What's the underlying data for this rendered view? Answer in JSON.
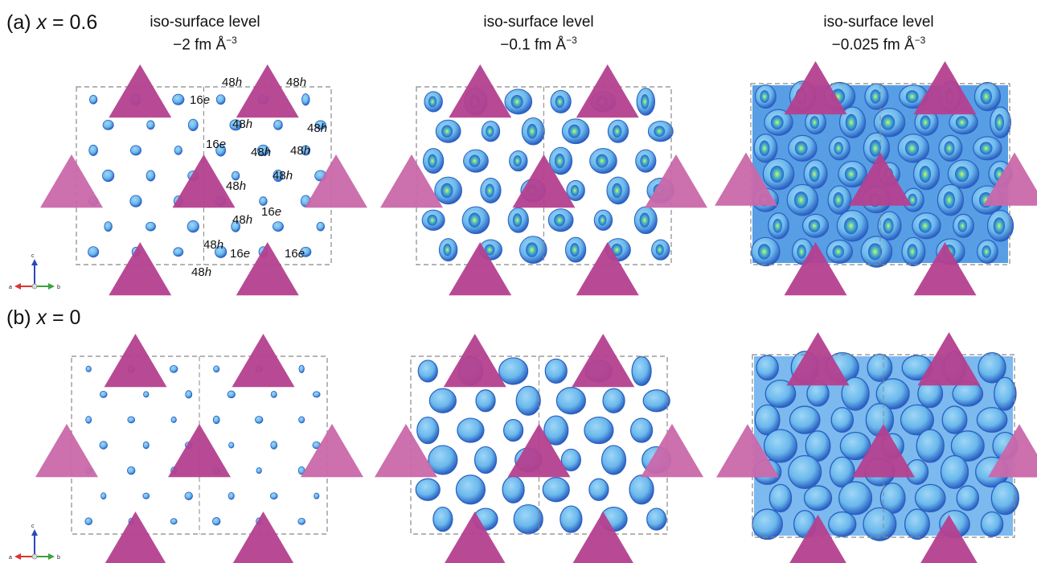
{
  "rows": [
    {
      "label_prefix": "(a)",
      "label_var": "x",
      "label_value": "= 0.6"
    },
    {
      "label_prefix": "(b)",
      "label_var": "x",
      "label_value": "= 0"
    }
  ],
  "columns": [
    {
      "title": "iso-surface level",
      "value": "−2 fm Å",
      "exp": "−3"
    },
    {
      "title": "iso-surface level",
      "value": "−0.1 fm Å",
      "exp": "−3"
    },
    {
      "title": "iso-surface level",
      "value": "−0.025 fm Å",
      "exp": "−3"
    }
  ],
  "site_labels": [
    {
      "num": "48",
      "letter": "h"
    },
    {
      "num": "48",
      "letter": "h"
    },
    {
      "num": "16",
      "letter": "e"
    },
    {
      "num": "48",
      "letter": "h"
    },
    {
      "num": "48",
      "letter": "h"
    },
    {
      "num": "16",
      "letter": "e"
    },
    {
      "num": "48",
      "letter": "h"
    },
    {
      "num": "48",
      "letter": "h"
    },
    {
      "num": "48",
      "letter": "h"
    },
    {
      "num": "48",
      "letter": "h"
    },
    {
      "num": "48",
      "letter": "h"
    },
    {
      "num": "16",
      "letter": "e"
    },
    {
      "num": "48",
      "letter": "h"
    },
    {
      "num": "16",
      "letter": "e"
    },
    {
      "num": "16",
      "letter": "e"
    },
    {
      "num": "48",
      "letter": "h"
    }
  ],
  "axes": {
    "c": "c",
    "a": "a",
    "b": "b"
  },
  "colors": {
    "tetrahedron": "#b4408f",
    "tetrahedron_light": "#c968aa",
    "density_light": "#6ab8ec",
    "density_dark": "#2a5fc2",
    "density_core": "#d8f06a",
    "cell_border": "#888888"
  }
}
